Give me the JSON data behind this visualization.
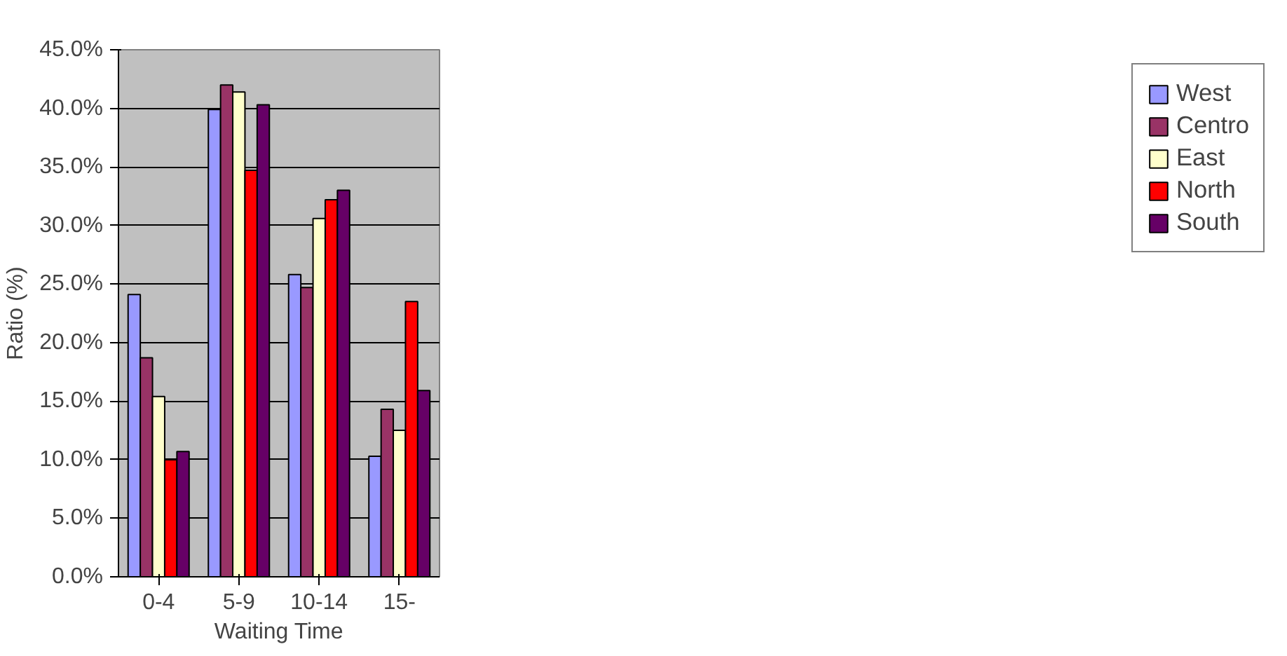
{
  "chart_data": {
    "type": "bar",
    "xlabel": "Waiting Time",
    "ylabel": "Ratio (%)",
    "categories": [
      "0-4",
      "5-9",
      "10-14",
      "15-"
    ],
    "series": [
      {
        "name": "West",
        "color": "#9999ff",
        "values": [
          24.1,
          39.9,
          25.8,
          10.3
        ]
      },
      {
        "name": "Centro",
        "color": "#993366",
        "values": [
          18.7,
          42.0,
          24.7,
          14.3
        ]
      },
      {
        "name": "East",
        "color": "#ffffcc",
        "values": [
          15.4,
          41.4,
          30.6,
          12.5
        ]
      },
      {
        "name": "North",
        "color": "#ff0000",
        "values": [
          10.0,
          34.7,
          32.2,
          23.5
        ]
      },
      {
        "name": "South",
        "color": "#660066",
        "values": [
          10.7,
          40.3,
          33.0,
          15.9
        ]
      }
    ],
    "ylim": [
      0,
      45
    ],
    "yticks": [
      {
        "value": 0,
        "label": "0.0%"
      },
      {
        "value": 5,
        "label": "5.0%"
      },
      {
        "value": 10,
        "label": "10.0%"
      },
      {
        "value": 15,
        "label": "15.0%"
      },
      {
        "value": 20,
        "label": "20.0%"
      },
      {
        "value": 25,
        "label": "25.0%"
      },
      {
        "value": 30,
        "label": "30.0%"
      },
      {
        "value": 35,
        "label": "35.0%"
      },
      {
        "value": 40,
        "label": "40.0%"
      },
      {
        "value": 45,
        "label": "45.0%"
      }
    ],
    "grid": "y",
    "legend": "right"
  }
}
